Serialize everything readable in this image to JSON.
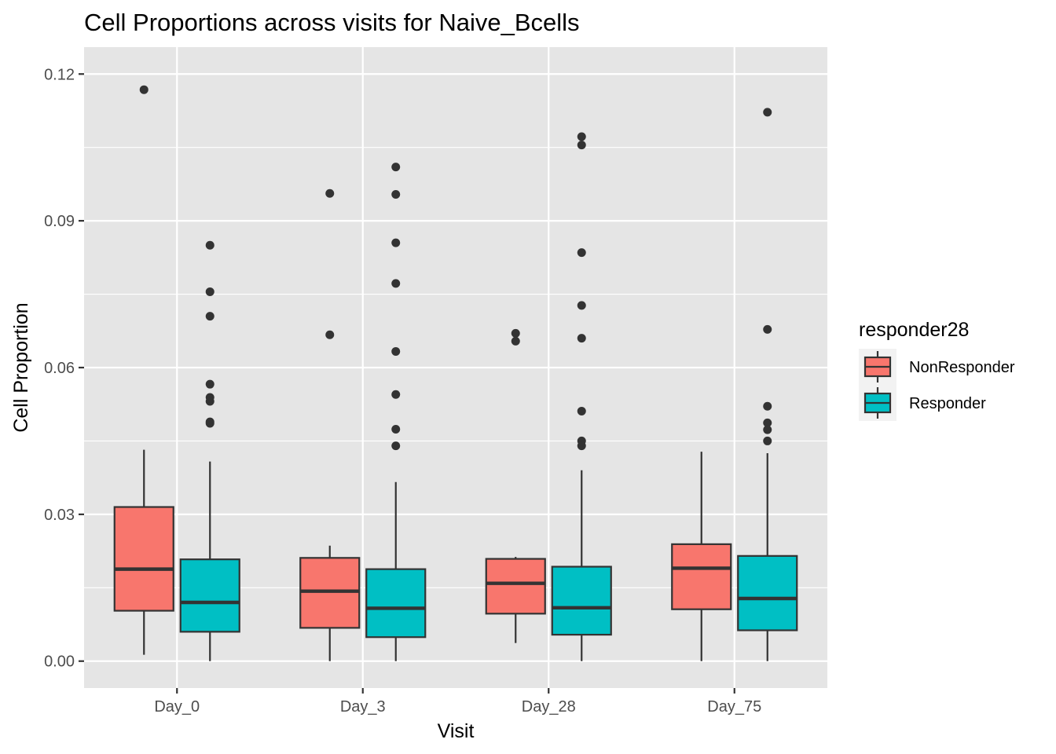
{
  "chart_data": {
    "type": "box",
    "title": "Cell Proportions across visits for Naive_Bcells",
    "xlabel": "Visit",
    "ylabel": "Cell Proportion",
    "ylim": [
      -0.0055,
      0.1255
    ],
    "yticks": [
      0.0,
      0.03,
      0.06,
      0.09,
      0.12
    ],
    "ytick_labels": [
      "0.00",
      "0.03",
      "0.06",
      "0.09",
      "0.12"
    ],
    "categories": [
      "Day_0",
      "Day_3",
      "Day_28",
      "Day_75"
    ],
    "grid": true,
    "panel_color": "#e5e5e5",
    "legend": {
      "title": "responder28",
      "position": "right"
    },
    "series": [
      {
        "name": "NonResponder",
        "color": "#f8766d",
        "boxes": [
          {
            "category": "Day_0",
            "whisker_low": 0.0013,
            "q1": 0.0103,
            "median": 0.0188,
            "q3": 0.0315,
            "whisker_high": 0.0432,
            "outliers": [
              0.1168
            ]
          },
          {
            "category": "Day_3",
            "whisker_low": 0.0,
            "q1": 0.0068,
            "median": 0.0143,
            "q3": 0.0211,
            "whisker_high": 0.0236,
            "outliers": [
              0.0956,
              0.0667
            ]
          },
          {
            "category": "Day_28",
            "whisker_low": 0.0037,
            "q1": 0.0097,
            "median": 0.0159,
            "q3": 0.0209,
            "whisker_high": 0.0213,
            "outliers": [
              0.067,
              0.0654
            ]
          },
          {
            "category": "Day_75",
            "whisker_low": 0.0,
            "q1": 0.0106,
            "median": 0.019,
            "q3": 0.0239,
            "whisker_high": 0.0428,
            "outliers": []
          }
        ]
      },
      {
        "name": "Responder",
        "color": "#00bfc4",
        "boxes": [
          {
            "category": "Day_0",
            "whisker_low": 0.0,
            "q1": 0.006,
            "median": 0.012,
            "q3": 0.0208,
            "whisker_high": 0.0408,
            "outliers": [
              0.085,
              0.0755,
              0.0705,
              0.0566,
              0.0539,
              0.0531,
              0.0489,
              0.0486
            ]
          },
          {
            "category": "Day_3",
            "whisker_low": 0.0,
            "q1": 0.0049,
            "median": 0.0108,
            "q3": 0.0188,
            "whisker_high": 0.0366,
            "outliers": [
              0.101,
              0.0954,
              0.0855,
              0.0772,
              0.0633,
              0.0545,
              0.0474,
              0.044
            ]
          },
          {
            "category": "Day_28",
            "whisker_low": 0.0,
            "q1": 0.0054,
            "median": 0.0109,
            "q3": 0.0193,
            "whisker_high": 0.039,
            "outliers": [
              0.1072,
              0.1055,
              0.0835,
              0.0727,
              0.066,
              0.0511,
              0.045,
              0.044
            ]
          },
          {
            "category": "Day_75",
            "whisker_low": 0.0,
            "q1": 0.0063,
            "median": 0.0128,
            "q3": 0.0215,
            "whisker_high": 0.0425,
            "outliers": [
              0.1122,
              0.0678,
              0.0521,
              0.0487,
              0.0473,
              0.045
            ]
          }
        ]
      }
    ]
  }
}
